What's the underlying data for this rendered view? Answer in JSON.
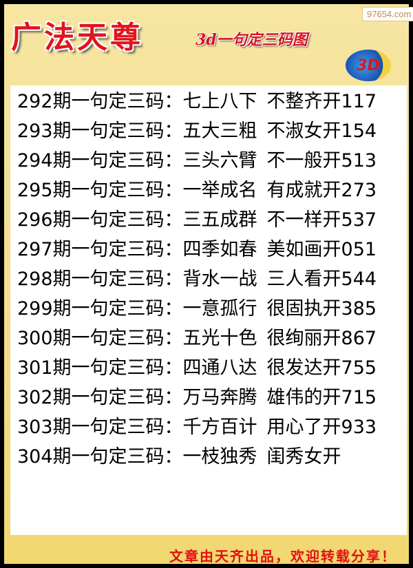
{
  "header": {
    "title": "广法天尊",
    "subtitle": "3d一句定三码图",
    "watermark": "97654.com",
    "logo": "3D"
  },
  "rows": [
    {
      "label": "292期一句定三码：",
      "phrase": "七上八下",
      "hint": "不整齐开117"
    },
    {
      "label": "293期一句定三码：",
      "phrase": "五大三粗",
      "hint": "不淑女开154"
    },
    {
      "label": "294期一句定三码：",
      "phrase": "三头六臂",
      "hint": "不一般开513"
    },
    {
      "label": "295期一句定三码：",
      "phrase": "一举成名",
      "hint": "有成就开273"
    },
    {
      "label": "296期一句定三码：",
      "phrase": "三五成群",
      "hint": "不一样开537"
    },
    {
      "label": "297期一句定三码：",
      "phrase": "四季如春",
      "hint": "美如画开051"
    },
    {
      "label": "298期一句定三码：",
      "phrase": "背水一战",
      "hint": "三人看开544"
    },
    {
      "label": "299期一句定三码：",
      "phrase": "一意孤行",
      "hint": "很固执开385"
    },
    {
      "label": "300期一句定三码：",
      "phrase": "五光十色",
      "hint": "很绚丽开867"
    },
    {
      "label": "301期一句定三码：",
      "phrase": "四通八达",
      "hint": "很发达开755"
    },
    {
      "label": "302期一句定三码：",
      "phrase": "万马奔腾",
      "hint": "雄伟的开715"
    },
    {
      "label": "303期一句定三码：",
      "phrase": "千方百计",
      "hint": "用心了开933"
    },
    {
      "label": "304期一句定三码：",
      "phrase": "一枝独秀",
      "hint": "闺秀女开"
    }
  ],
  "footer": "文章由天齐出品，欢迎转载分享！"
}
